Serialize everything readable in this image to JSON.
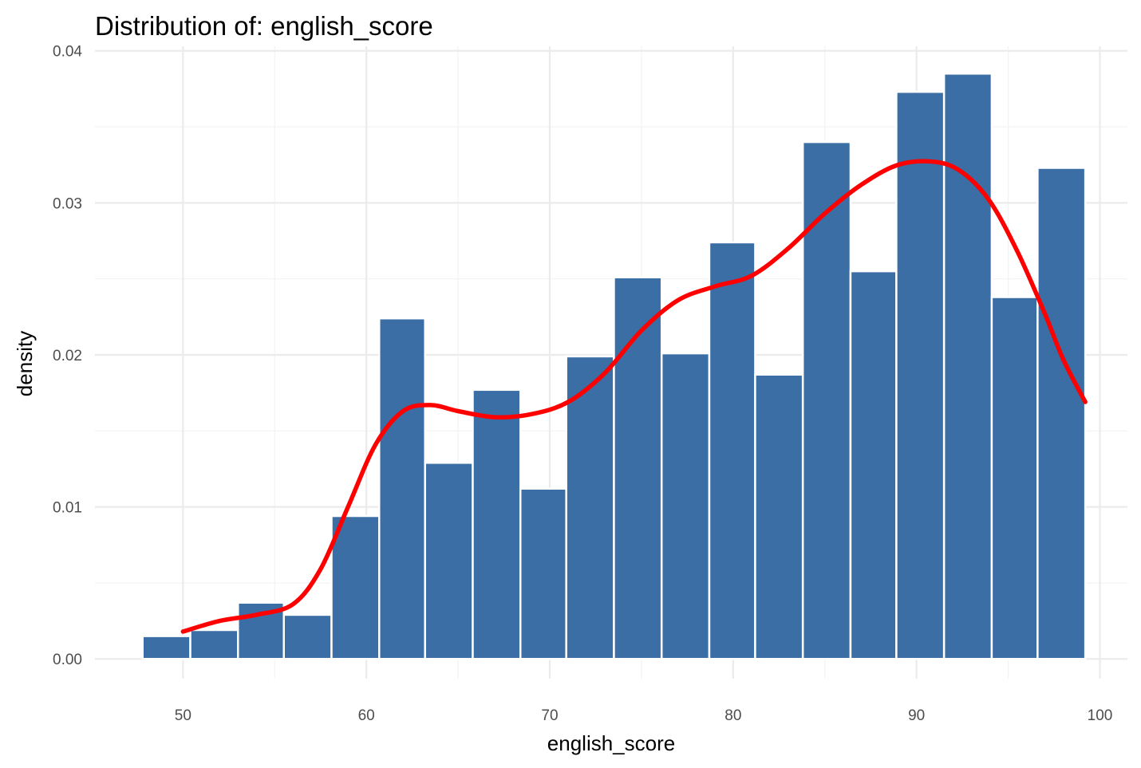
{
  "chart_data": {
    "type": "bar",
    "title": "Distribution of: english_score",
    "xlabel": "english_score",
    "ylabel": "density",
    "xlim": [
      45.2,
      101.5
    ],
    "ylim": [
      -0.0013,
      0.0403
    ],
    "x_ticks": [
      50,
      60,
      70,
      80,
      90,
      100
    ],
    "y_ticks": [
      0.0,
      0.01,
      0.02,
      0.03,
      0.04
    ],
    "y_tick_labels": [
      "0.00",
      "0.01",
      "0.02",
      "0.03",
      "0.04"
    ],
    "x_minor_ticks": [
      55,
      65,
      75,
      85,
      95
    ],
    "y_minor_ticks": [
      0.005,
      0.015,
      0.025,
      0.035
    ],
    "grid": true,
    "bins": [
      {
        "x0": 47.8,
        "x1": 50.4,
        "density": 0.0015
      },
      {
        "x0": 50.4,
        "x1": 53.0,
        "density": 0.0019
      },
      {
        "x0": 53.0,
        "x1": 55.5,
        "density": 0.0037
      },
      {
        "x0": 55.5,
        "x1": 58.1,
        "density": 0.0029
      },
      {
        "x0": 58.1,
        "x1": 60.7,
        "density": 0.0094
      },
      {
        "x0": 60.7,
        "x1": 63.2,
        "density": 0.0224
      },
      {
        "x0": 63.2,
        "x1": 65.8,
        "density": 0.0129
      },
      {
        "x0": 65.8,
        "x1": 68.4,
        "density": 0.0177
      },
      {
        "x0": 68.4,
        "x1": 70.9,
        "density": 0.0112
      },
      {
        "x0": 70.9,
        "x1": 73.5,
        "density": 0.0199
      },
      {
        "x0": 73.5,
        "x1": 76.1,
        "density": 0.0251
      },
      {
        "x0": 76.1,
        "x1": 78.7,
        "density": 0.0201
      },
      {
        "x0": 78.7,
        "x1": 81.2,
        "density": 0.0274
      },
      {
        "x0": 81.2,
        "x1": 83.8,
        "density": 0.0187
      },
      {
        "x0": 83.8,
        "x1": 86.4,
        "density": 0.034
      },
      {
        "x0": 86.4,
        "x1": 88.9,
        "density": 0.0255
      },
      {
        "x0": 88.9,
        "x1": 91.5,
        "density": 0.0373
      },
      {
        "x0": 91.5,
        "x1": 94.1,
        "density": 0.0385
      },
      {
        "x0": 94.1,
        "x1": 96.6,
        "density": 0.0238
      },
      {
        "x0": 96.6,
        "x1": 99.2,
        "density": 0.0323
      }
    ],
    "density_curve": {
      "x": [
        50,
        52,
        54,
        56,
        57.5,
        59,
        60.5,
        62,
        63.5,
        65,
        67,
        69,
        71,
        73,
        75,
        77,
        79,
        81,
        83,
        85,
        87,
        89,
        91,
        92.5,
        94,
        95.5,
        97,
        98,
        99.2
      ],
      "y": [
        0.0018,
        0.0025,
        0.0029,
        0.0036,
        0.0059,
        0.01,
        0.0141,
        0.0163,
        0.0167,
        0.0163,
        0.0159,
        0.0161,
        0.0169,
        0.0188,
        0.0216,
        0.0236,
        0.0245,
        0.0252,
        0.027,
        0.0293,
        0.0312,
        0.0325,
        0.0327,
        0.032,
        0.0301,
        0.0268,
        0.0227,
        0.0197,
        0.0169
      ]
    },
    "bar_color": "#3a6ea5",
    "bar_edge_color": "#ffffff",
    "curve_color": "#ff0000"
  }
}
